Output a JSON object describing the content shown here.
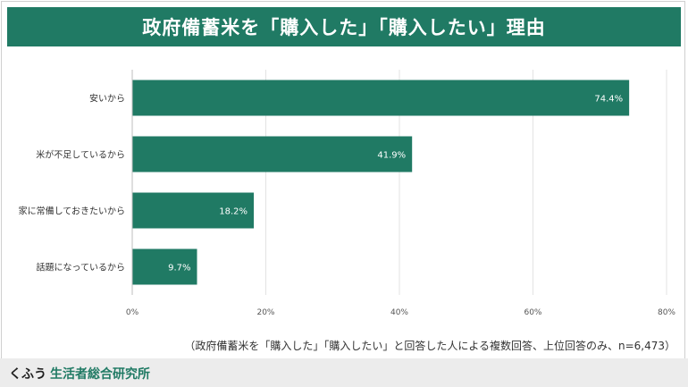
{
  "header": {
    "title": "政府備蓄米を「購入した」「購入したい」理由"
  },
  "note": "（政府備蓄米を「購入した」「購入したい」と回答した人による複数回答、上位回答のみ、n=6,473）",
  "brand": {
    "part1": "くふう",
    "part2": "生活者総合研究所"
  },
  "colors": {
    "accent": "#207a64"
  },
  "chart_data": {
    "type": "bar",
    "orientation": "horizontal",
    "categories": [
      "安いから",
      "米が不足しているから",
      "家に常備しておきたいから",
      "話題になっているから"
    ],
    "values": [
      74.4,
      41.9,
      18.2,
      9.7
    ],
    "value_labels": [
      "74.4%",
      "41.9%",
      "18.2%",
      "9.7%"
    ],
    "xlim": [
      0,
      80
    ],
    "xticks": [
      0,
      20,
      40,
      60,
      80
    ],
    "xtick_labels": [
      "0%",
      "20%",
      "40%",
      "60%",
      "80%"
    ],
    "grid": true,
    "legend": "none"
  }
}
